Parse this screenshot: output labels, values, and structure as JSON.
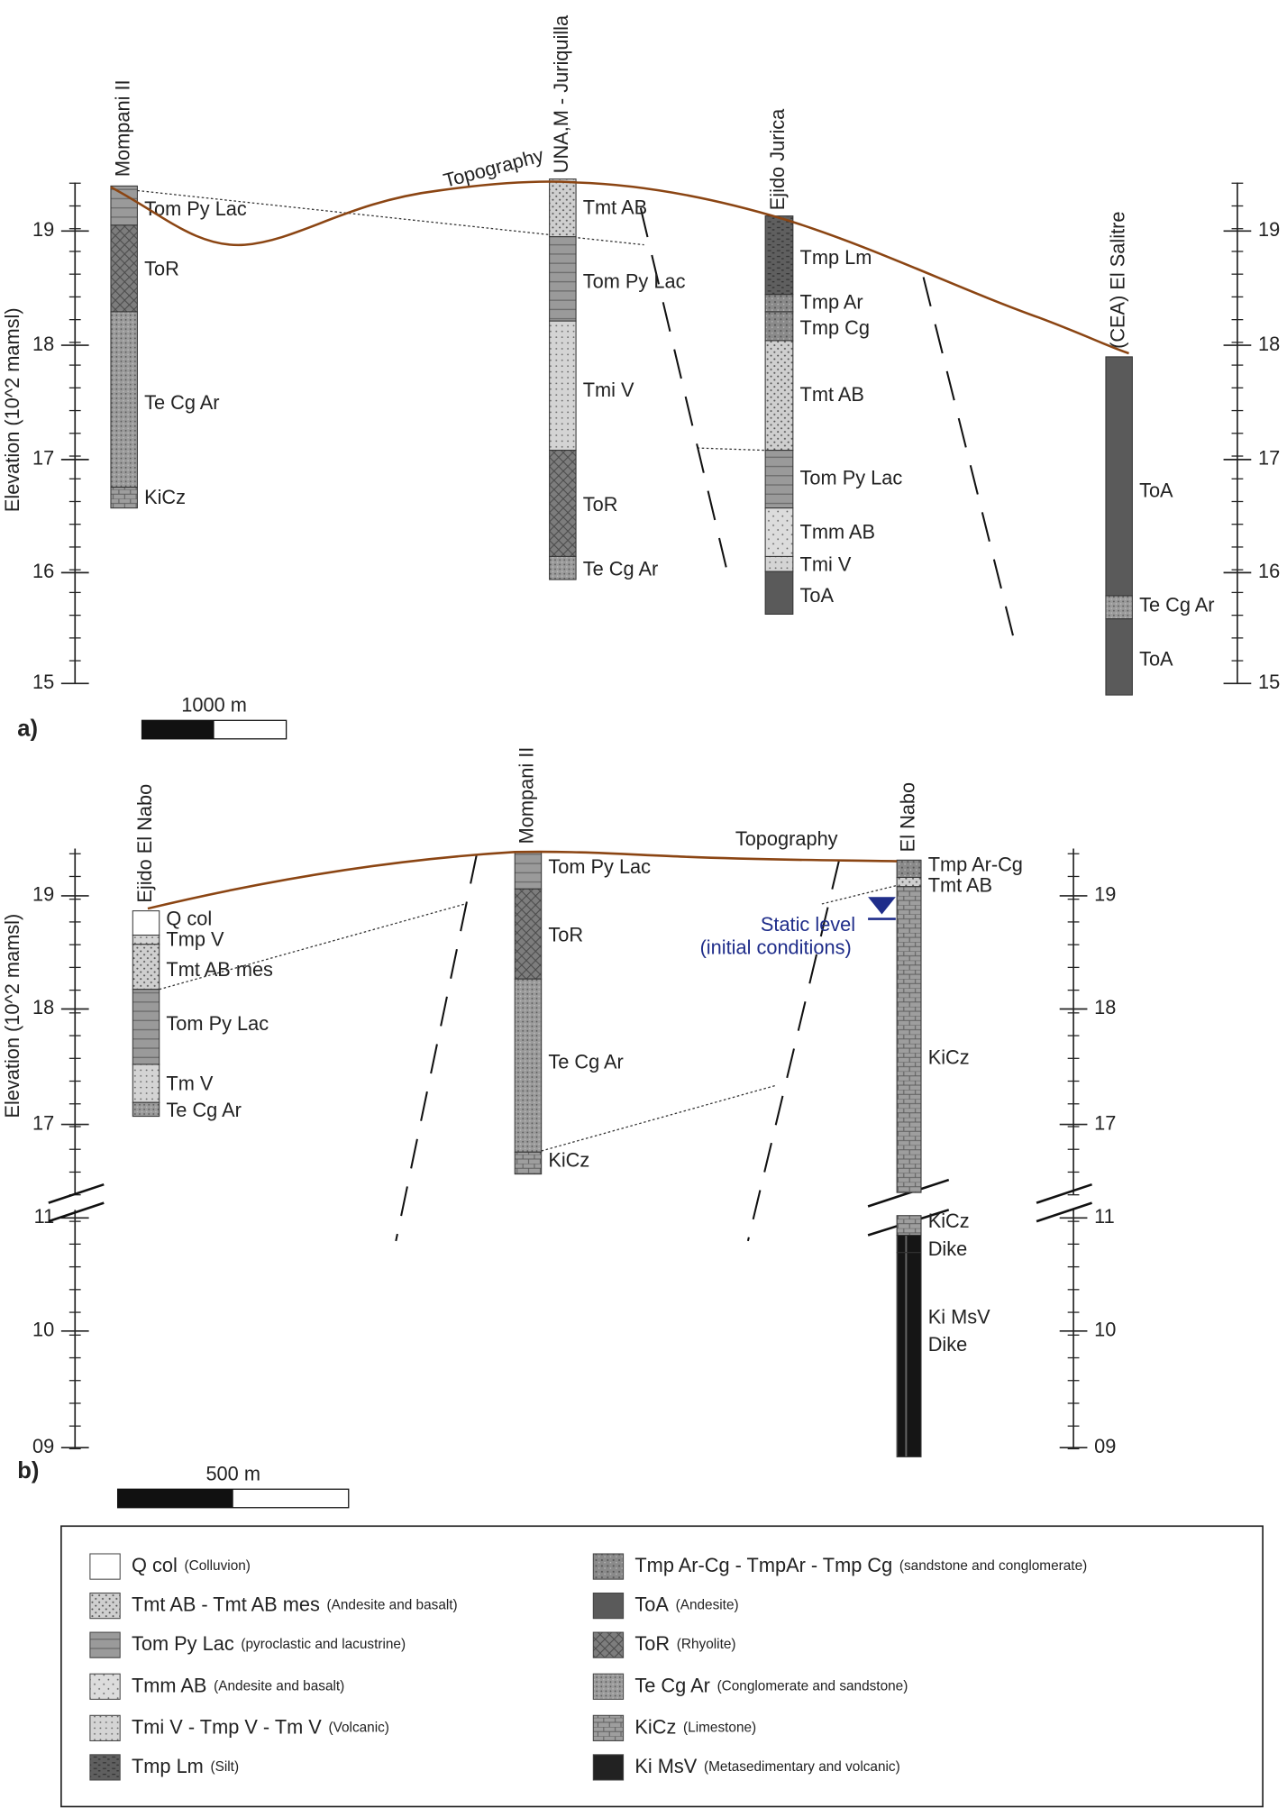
{
  "panels": [
    {
      "label": "a)",
      "y_axis_label": "Elevation (10^2 mamsl)",
      "ticks": [
        "19",
        "18",
        "17",
        "16",
        "15"
      ],
      "topography": "Topography",
      "scale_bar": "1000 m",
      "wells": [
        {
          "name": "Mompani II",
          "layers": [
            "Tom Py Lac",
            "ToR",
            "Te Cg Ar",
            "KiCz"
          ]
        },
        {
          "name": "UNA,M - Juriquilla",
          "layers": [
            "Tmt AB",
            "Tom Py Lac",
            "Tmi V",
            "ToR",
            "Te Cg Ar"
          ]
        },
        {
          "name": "Ejido Jurica",
          "layers": [
            "Tmp Lm",
            "Tmp Ar",
            "Tmp Cg",
            "Tmt AB",
            "Tom Py Lac",
            "Tmm AB",
            "Tmi V",
            "ToA"
          ]
        },
        {
          "name": "(CEA) El Salitre",
          "layers": [
            "ToA",
            "Te Cg Ar",
            "ToA"
          ]
        }
      ]
    },
    {
      "label": "b)",
      "y_axis_label": "Elevation (10^2 mamsl)",
      "ticks": [
        "19",
        "18",
        "17",
        "11",
        "10",
        "09"
      ],
      "topography": "Topography",
      "scale_bar": "500 m",
      "static_level": [
        "Static level",
        "(initial conditions)"
      ],
      "wells": [
        {
          "name": "Ejido El Nabo",
          "layers": [
            "Q col",
            "Tmp V",
            "Tmt AB mes",
            "Tom Py Lac",
            "Tm V",
            "Te Cg Ar"
          ]
        },
        {
          "name": "Mompani II",
          "layers": [
            "Tom Py Lac",
            "ToR",
            "Te Cg Ar",
            "KiCz"
          ]
        },
        {
          "name": "El Nabo",
          "layers": [
            "Tmp Ar-Cg",
            "Tmt AB",
            "KiCz",
            "KiCz",
            "Dike",
            "Ki MsV",
            "Dike"
          ]
        }
      ]
    }
  ],
  "legend": [
    {
      "name": "Q col",
      "description": "(Colluvion)"
    },
    {
      "name": "Tmt AB - Tmt AB mes",
      "description": "(Andesite and basalt)"
    },
    {
      "name": "Tom Py Lac",
      "description": "(pyroclastic and lacustrine)"
    },
    {
      "name": "Tmm AB",
      "description": "(Andesite and basalt)"
    },
    {
      "name": "Tmi V - Tmp V - Tm V",
      "description": "(Volcanic)"
    },
    {
      "name": "Tmp Lm",
      "description": "(Silt)"
    },
    {
      "name": "Tmp Ar-Cg - TmpAr - Tmp Cg",
      "description": "(sandstone and conglomerate)"
    },
    {
      "name": "ToA",
      "description": "(Andesite)"
    },
    {
      "name": "ToR",
      "description": "(Rhyolite)"
    },
    {
      "name": "Te Cg Ar",
      "description": "(Conglomerate and sandstone)"
    },
    {
      "name": "KiCz",
      "description": "(Limestone)"
    },
    {
      "name": "Ki MsV",
      "description": "(Metasedimentary and volcanic)"
    }
  ]
}
